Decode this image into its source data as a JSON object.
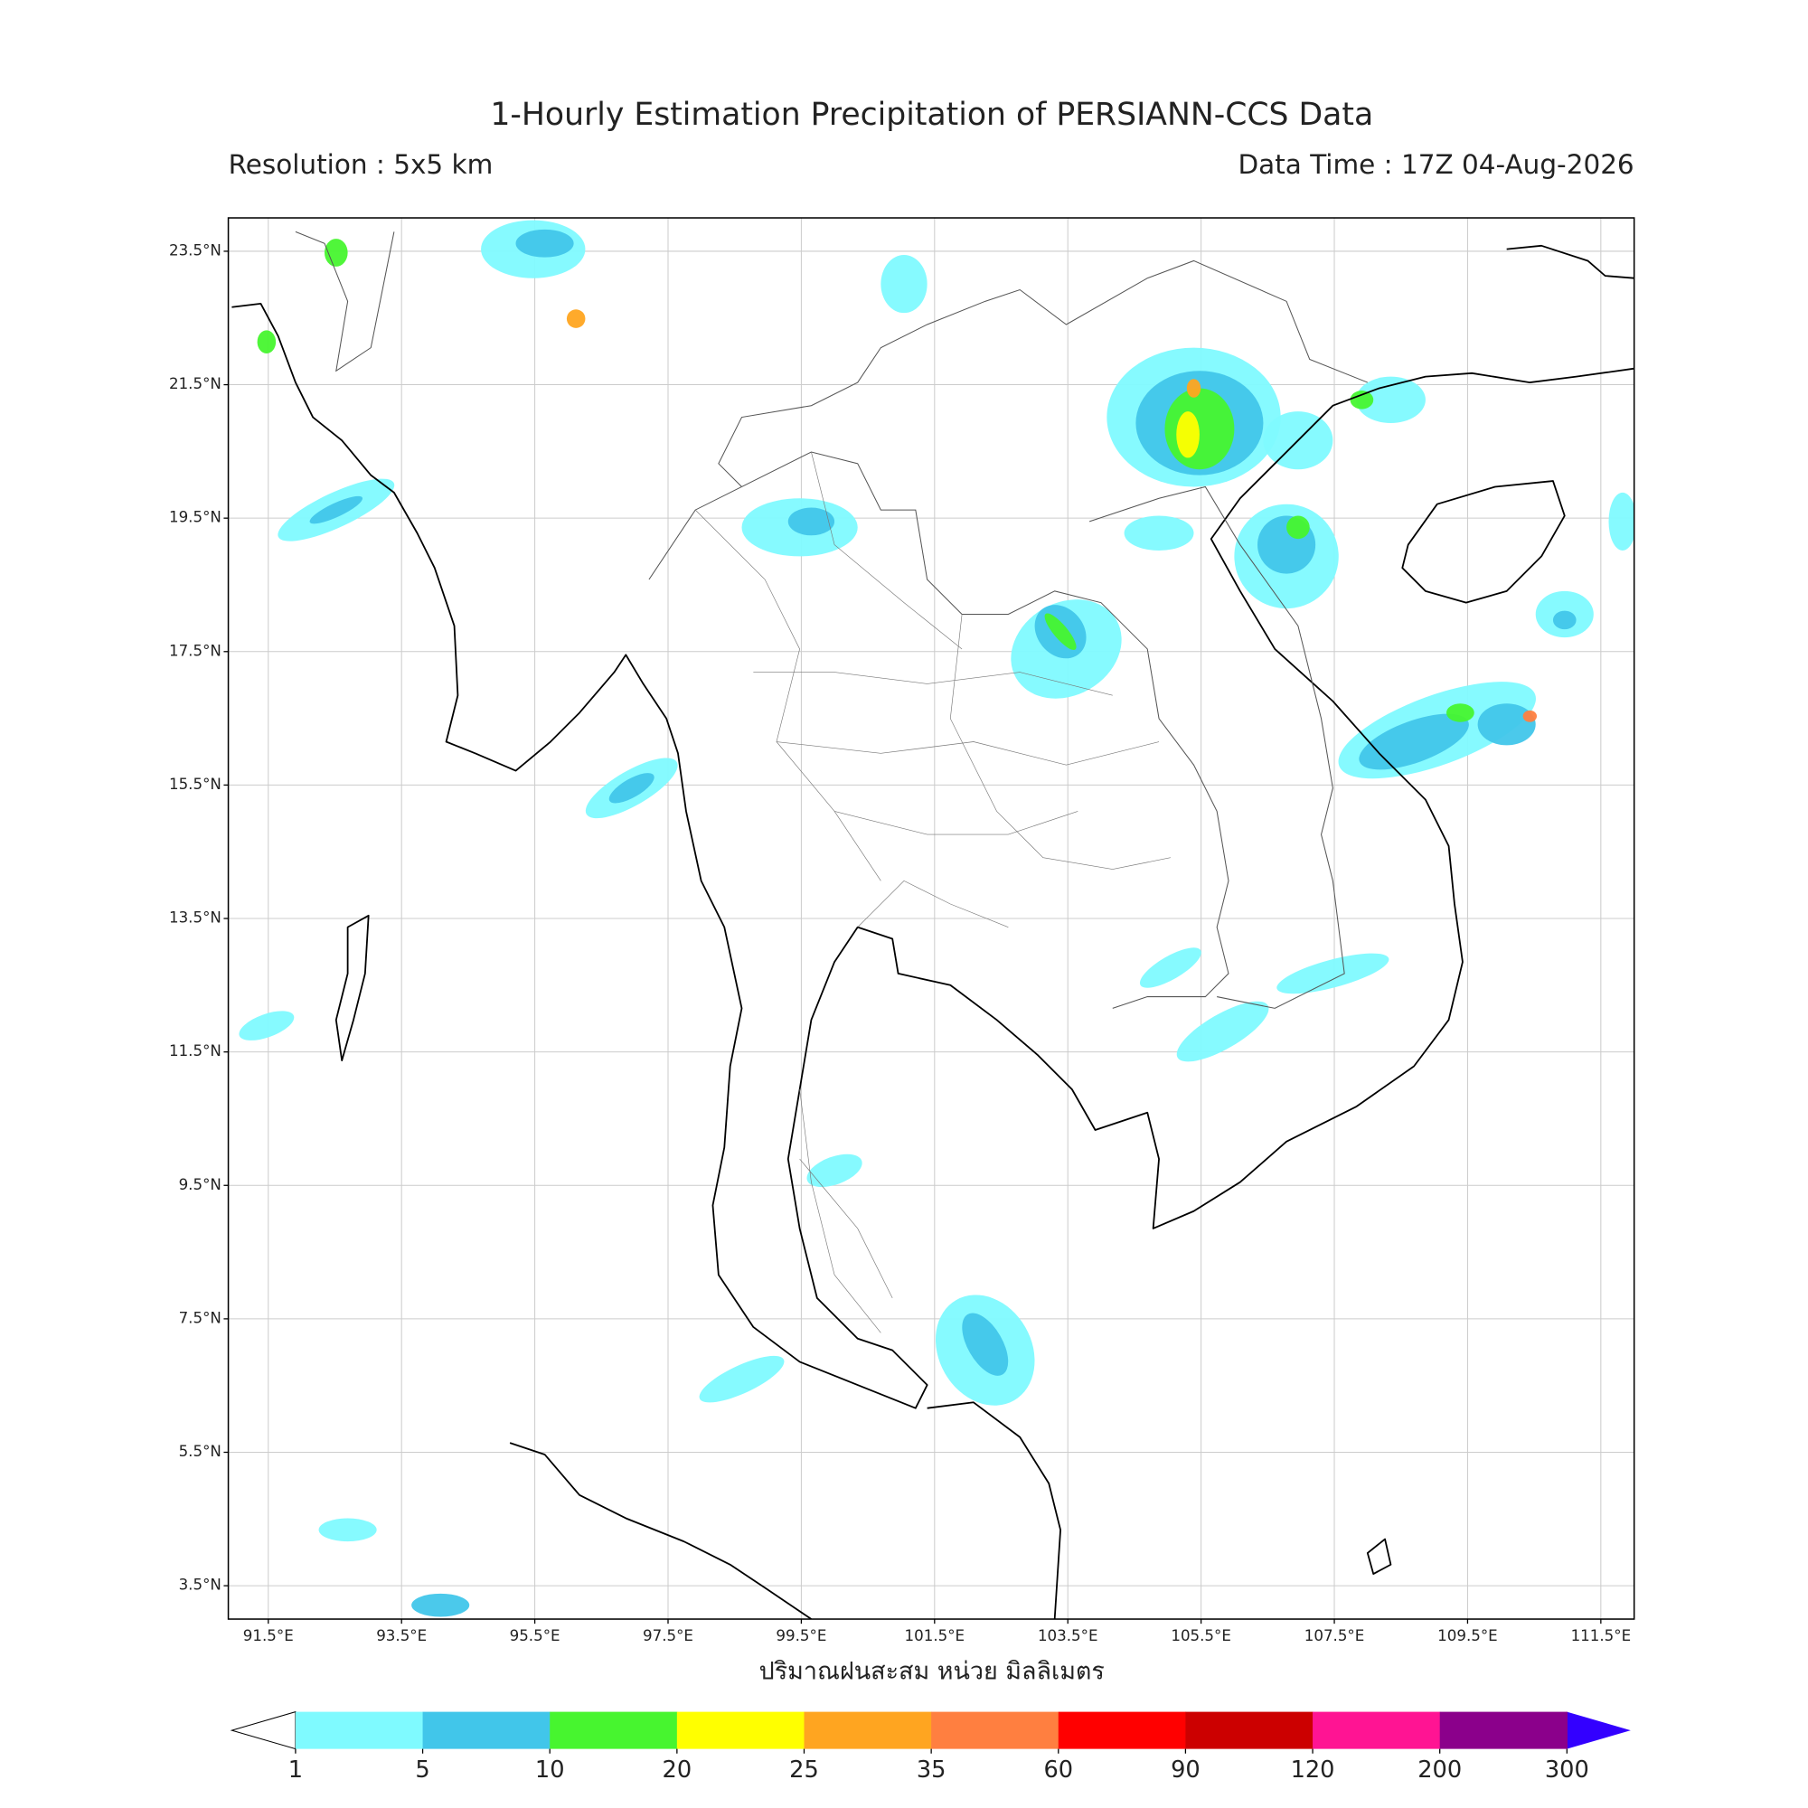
{
  "header": {
    "title": "1-Hourly Estimation Precipitation of PERSIANN-CCS Data",
    "resolution": "Resolution : 5x5 km",
    "data_time": "Data Time : 17Z 04-Aug-2026"
  },
  "map": {
    "extent": {
      "lon": [
        90.9,
        112.0
      ],
      "lat": [
        3.0,
        24.0
      ]
    },
    "lat_ticks": [
      {
        "value": 23.5,
        "label": "23.5°N"
      },
      {
        "value": 21.5,
        "label": "21.5°N"
      },
      {
        "value": 19.5,
        "label": "19.5°N"
      },
      {
        "value": 17.5,
        "label": "17.5°N"
      },
      {
        "value": 15.5,
        "label": "15.5°N"
      },
      {
        "value": 13.5,
        "label": "13.5°N"
      },
      {
        "value": 11.5,
        "label": "11.5°N"
      },
      {
        "value": 9.5,
        "label": "9.5°N"
      },
      {
        "value": 7.5,
        "label": "7.5°N"
      },
      {
        "value": 5.5,
        "label": "5.5°N"
      },
      {
        "value": 3.5,
        "label": "3.5°N"
      }
    ],
    "lon_ticks": [
      {
        "value": 91.5,
        "label": "91.5°E"
      },
      {
        "value": 93.5,
        "label": "93.5°E"
      },
      {
        "value": 95.5,
        "label": "95.5°E"
      },
      {
        "value": 97.5,
        "label": "97.5°E"
      },
      {
        "value": 99.5,
        "label": "99.5°E"
      },
      {
        "value": 101.5,
        "label": "101.5°E"
      },
      {
        "value": 103.5,
        "label": "103.5°E"
      },
      {
        "value": 105.5,
        "label": "105.5°E"
      },
      {
        "value": 107.5,
        "label": "107.5°E"
      },
      {
        "value": 109.5,
        "label": "109.5°E"
      },
      {
        "value": 111.5,
        "label": "111.5°E"
      }
    ],
    "xlabel": "ปริมาณฝนสะสม หน่วย มิลลิเมตร"
  },
  "colorbar": {
    "levels": [
      1,
      5,
      10,
      20,
      25,
      35,
      60,
      90,
      120,
      200,
      300
    ],
    "colors": [
      "#7ffaff",
      "#41c6ea",
      "#47f52f",
      "#ffff00",
      "#ffa520",
      "#ff7f40",
      "#ff0000",
      "#cc0000",
      "#ff1493",
      "#8b008b"
    ],
    "under_color": "#ffffff",
    "over_color": "#3300ff"
  }
}
